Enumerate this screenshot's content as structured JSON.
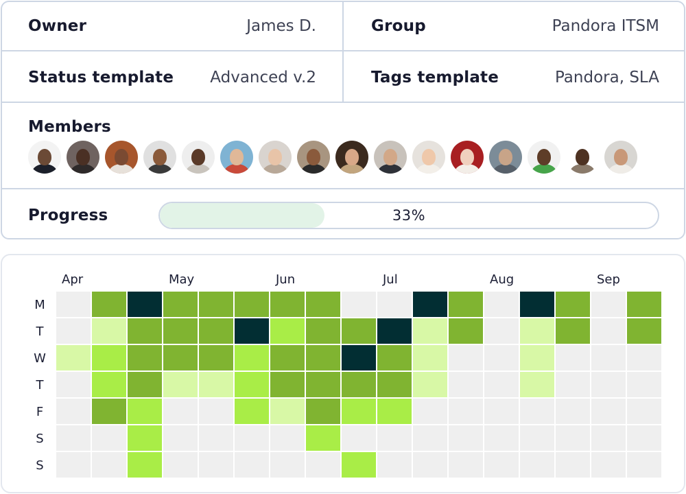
{
  "details": {
    "owner": {
      "label": "Owner",
      "value": "James D."
    },
    "group": {
      "label": "Group",
      "value": "Pandora ITSM"
    },
    "status_template": {
      "label": "Status template",
      "value": "Advanced v.2"
    },
    "tags_template": {
      "label": "Tags template",
      "value": "Pandora, SLA"
    }
  },
  "members": {
    "label": "Members",
    "avatars": [
      {
        "bg": "#f3f3f3",
        "skin": "#6b4a36",
        "shirt": "#1b1f2a"
      },
      {
        "bg": "#6f6360",
        "skin": "#4a3024",
        "shirt": "#2e2a2a"
      },
      {
        "bg": "#a7562c",
        "skin": "#7a4a32",
        "shirt": "#e7e1da"
      },
      {
        "bg": "#e0e0e0",
        "skin": "#8a5a3a",
        "shirt": "#3a3a3a"
      },
      {
        "bg": "#eeeeee",
        "skin": "#5a3a28",
        "shirt": "#c9c4bd"
      },
      {
        "bg": "#7fb3d3",
        "skin": "#e0b898",
        "shirt": "#c94a3a"
      },
      {
        "bg": "#d9d4cf",
        "skin": "#e8c4a8",
        "shirt": "#b8a898"
      },
      {
        "bg": "#a89580",
        "skin": "#8a5a3c",
        "shirt": "#2a2a2a"
      },
      {
        "bg": "#3b2a1e",
        "skin": "#d8a888",
        "shirt": "#c2a57e"
      },
      {
        "bg": "#c8c2bb",
        "skin": "#d2a888",
        "shirt": "#2e3138"
      },
      {
        "bg": "#e6e2dd",
        "skin": "#efc8aa",
        "shirt": "#f3efe9"
      },
      {
        "bg": "#a81f22",
        "skin": "#f0d0be",
        "shirt": "#f3eee8"
      },
      {
        "bg": "#7c8c98",
        "skin": "#c8a488",
        "shirt": "#57606a"
      },
      {
        "bg": "#f1f1f1",
        "skin": "#5e3d28",
        "shirt": "#46a44a"
      },
      {
        "bg": "#ffffff",
        "skin": "#4e3222",
        "shirt": "#8a7a6a"
      },
      {
        "bg": "#d8d6d2",
        "skin": "#c89878",
        "shirt": "#efece7"
      }
    ]
  },
  "progress": {
    "label": "Progress",
    "value": 0.33,
    "text": "33%"
  },
  "heatmap": {
    "months": [
      "Apr",
      "May",
      "Jun",
      "Jul",
      "Aug",
      "Sep"
    ],
    "days": [
      "M",
      "T",
      "W",
      "T",
      "F",
      "S",
      "S"
    ],
    "palette": [
      "#efefef",
      "#d8f8a6",
      "#a9ed47",
      "#80b431",
      "#022e33"
    ],
    "grid": [
      [
        0,
        3,
        4,
        3,
        3,
        3,
        3,
        3,
        0,
        0,
        4,
        3,
        0,
        4,
        3,
        0,
        3
      ],
      [
        0,
        1,
        3,
        3,
        3,
        4,
        2,
        3,
        3,
        4,
        1,
        3,
        0,
        1,
        3,
        0,
        3
      ],
      [
        1,
        2,
        3,
        3,
        3,
        2,
        3,
        3,
        4,
        3,
        1,
        0,
        0,
        1,
        0,
        0,
        0
      ],
      [
        0,
        2,
        3,
        1,
        1,
        2,
        3,
        3,
        3,
        3,
        1,
        0,
        0,
        1,
        0,
        0,
        0
      ],
      [
        0,
        3,
        2,
        0,
        0,
        2,
        1,
        3,
        2,
        2,
        0,
        0,
        0,
        0,
        0,
        0,
        0
      ],
      [
        0,
        0,
        2,
        0,
        0,
        0,
        0,
        2,
        0,
        0,
        0,
        0,
        0,
        0,
        0,
        0,
        0
      ],
      [
        0,
        0,
        2,
        0,
        0,
        0,
        0,
        0,
        2,
        0,
        0,
        0,
        0,
        0,
        0,
        0,
        0
      ]
    ]
  },
  "colors": {
    "border": "#cdd6e4",
    "progress_fill": "#e2f3e7"
  }
}
